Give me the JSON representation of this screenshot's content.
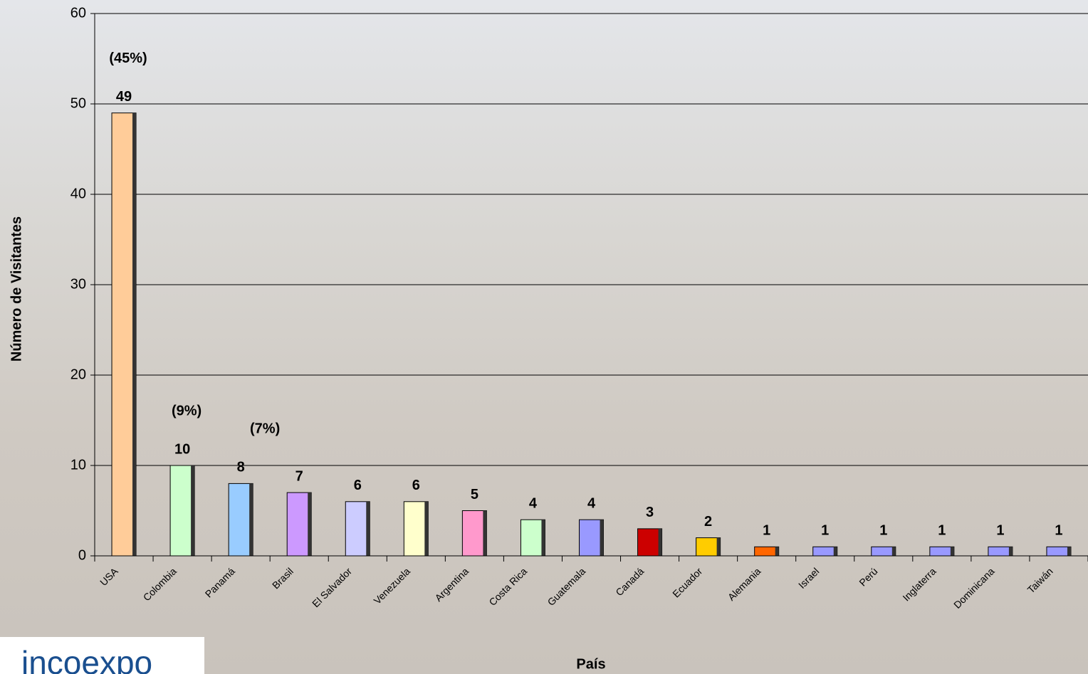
{
  "chart_data": {
    "type": "bar",
    "categories": [
      "USA",
      "Colombia",
      "Panamá",
      "Brasil",
      "El Salvador",
      "Venezuela",
      "Argentina",
      "Costa Rica",
      "Guatemala",
      "Canadá",
      "Ecuador",
      "Alemania",
      "Israel",
      "Perú",
      "Inglaterra",
      "Dominicana",
      "Taiwán"
    ],
    "values": [
      49,
      10,
      8,
      7,
      6,
      6,
      5,
      4,
      4,
      3,
      2,
      1,
      1,
      1,
      1,
      1,
      1
    ],
    "colors": [
      "#ffcc99",
      "#ccffcc",
      "#99ccff",
      "#cc99ff",
      "#ccccff",
      "#ffffcc",
      "#ff99cc",
      "#ccffcc",
      "#9999ff",
      "#cc0000",
      "#ffcc00",
      "#ff6600",
      "#9999ff",
      "#9999ff",
      "#9999ff",
      "#9999ff",
      "#9999ff"
    ],
    "annotations": [
      "(45%)",
      "(9%)",
      "(7%)"
    ],
    "ylim": [
      0,
      60
    ],
    "yticks": [
      0,
      10,
      20,
      30,
      40,
      50,
      60
    ],
    "grid": true,
    "x_label": "País",
    "y_label": "Número de Visitantes"
  },
  "logo": "incoexpo"
}
